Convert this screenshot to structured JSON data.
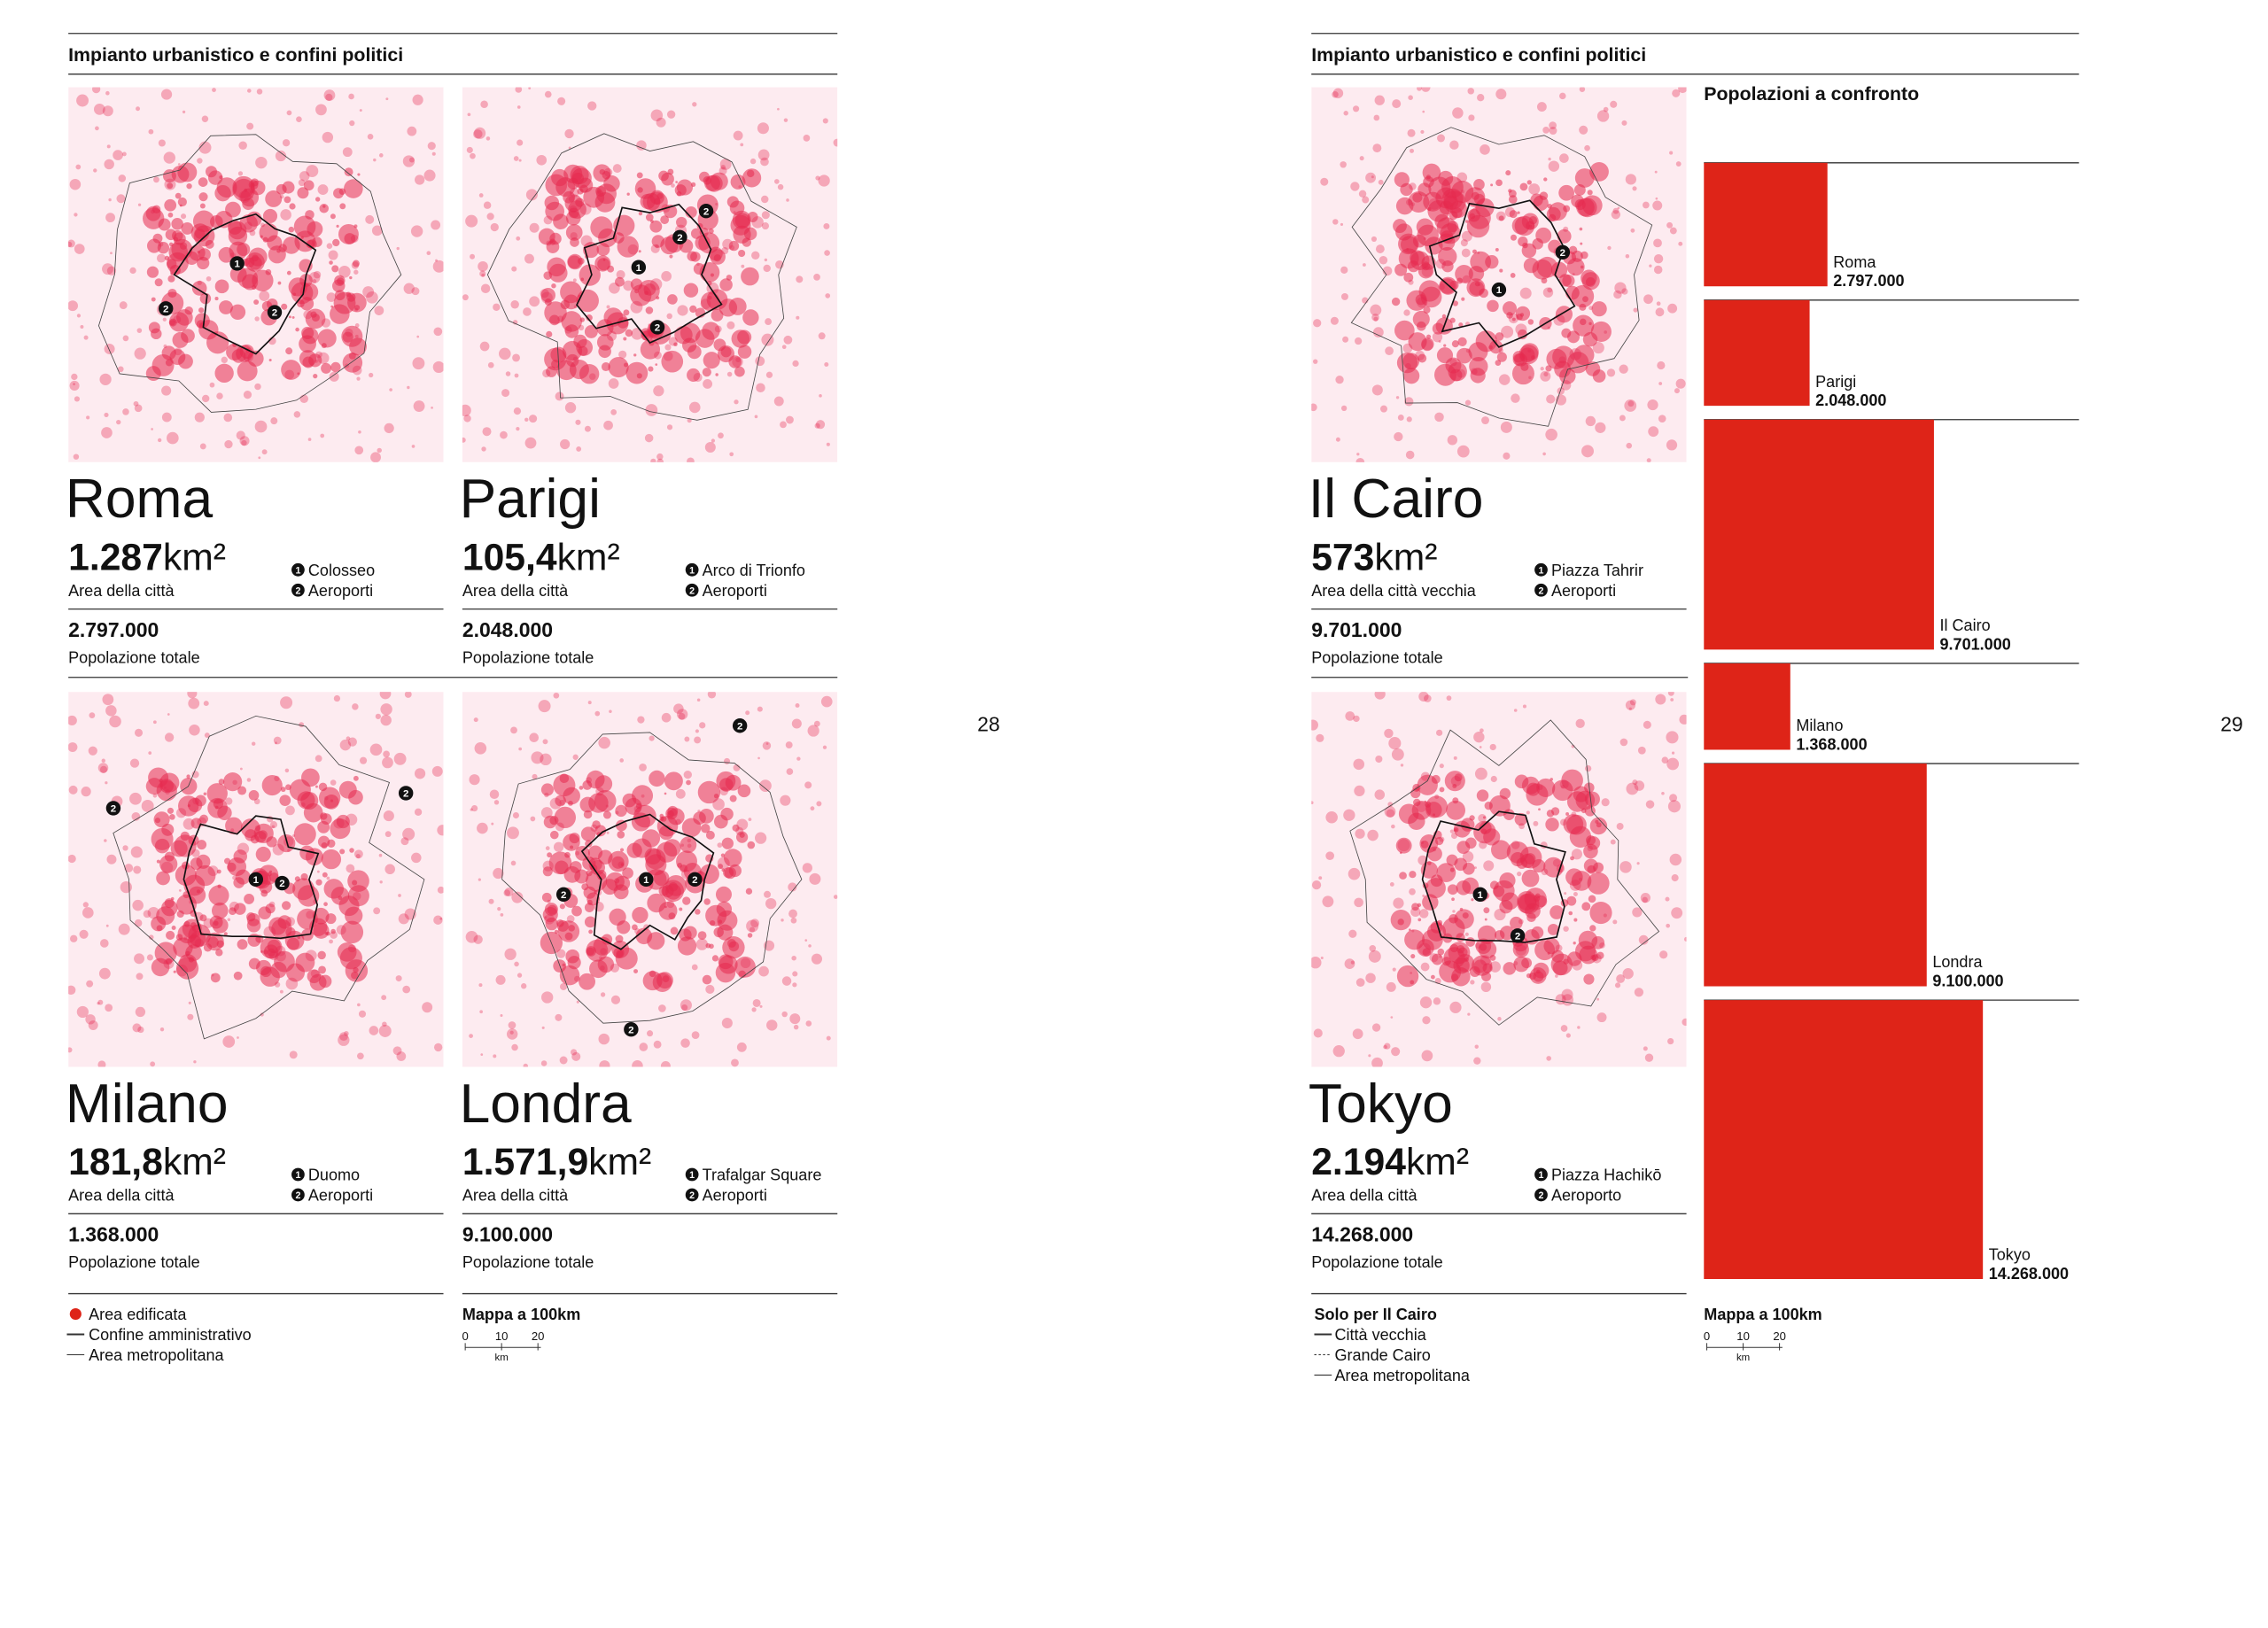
{
  "left_page": {
    "header": "Impianto urbanistico e confini politici",
    "page_number": "28",
    "legend": [
      "Area edificata",
      "Confine amministrativo",
      "Area metropolitana"
    ],
    "scale": {
      "title": "Mappa a 100km",
      "ticks": [
        "0",
        "10",
        "20"
      ],
      "unit": "km"
    }
  },
  "right_page": {
    "header": "Impianto urbanistico e confini politici",
    "page_number": "29",
    "legend_title": "Solo per Il Cairo",
    "legend": [
      "Città vecchia",
      "Grande Cairo",
      "Area metropolitana"
    ],
    "scale": {
      "title": "Mappa a 100km",
      "ticks": [
        "0",
        "10",
        "20"
      ],
      "unit": "km"
    }
  },
  "cities": [
    {
      "name": "Roma",
      "area": "1.287",
      "area_unit": "km²",
      "area_label": "Area della città",
      "landmarks": [
        {
          "marker": "1",
          "label": "Colosseo"
        },
        {
          "marker": "2",
          "label": "Aeroporti"
        }
      ],
      "population": "2.797.000",
      "population_label": "Popolazione totale"
    },
    {
      "name": "Parigi",
      "area": "105,4",
      "area_unit": "km²",
      "area_label": "Area della città",
      "landmarks": [
        {
          "marker": "1",
          "label": "Arco di Trionfo"
        },
        {
          "marker": "2",
          "label": "Aeroporti"
        }
      ],
      "population": "2.048.000",
      "population_label": "Popolazione totale"
    },
    {
      "name": "Milano",
      "area": "181,8",
      "area_unit": "km²",
      "area_label": "Area della città",
      "landmarks": [
        {
          "marker": "1",
          "label": "Duomo"
        },
        {
          "marker": "2",
          "label": "Aeroporti"
        }
      ],
      "population": "1.368.000",
      "population_label": "Popolazione totale"
    },
    {
      "name": "Londra",
      "area": "1.571,9",
      "area_unit": "km²",
      "area_label": "Area della città",
      "landmarks": [
        {
          "marker": "1",
          "label": "Trafalgar Square"
        },
        {
          "marker": "2",
          "label": "Aeroporti"
        }
      ],
      "population": "9.100.000",
      "population_label": "Popolazione totale"
    },
    {
      "name": "Il Cairo",
      "area": "573",
      "area_unit": "km²",
      "area_label": "Area della città vecchia",
      "landmarks": [
        {
          "marker": "1",
          "label": "Piazza Tahrir"
        },
        {
          "marker": "2",
          "label": "Aeroporti"
        }
      ],
      "population": "9.701.000",
      "population_label": "Popolazione totale"
    },
    {
      "name": "Tokyo",
      "area": "2.194",
      "area_unit": "km²",
      "area_label": "Area della città",
      "landmarks": [
        {
          "marker": "1",
          "label": "Piazza Hachikō"
        },
        {
          "marker": "2",
          "label": "Aeroporto"
        }
      ],
      "population": "14.268.000",
      "population_label": "Popolazione totale"
    }
  ],
  "population_chart": {
    "title": "Popolazioni a confronto",
    "color": "#de2418",
    "categories": [
      "Roma",
      "Parigi",
      "Il Cairo",
      "Milano",
      "Londra",
      "Tokyo"
    ],
    "values": [
      2797000,
      2048000,
      9701000,
      1368000,
      9100000,
      14268000
    ],
    "value_labels": [
      "2.797.000",
      "2.048.000",
      "9.701.000",
      "1.368.000",
      "9.100.000",
      "14.268.000"
    ]
  }
}
